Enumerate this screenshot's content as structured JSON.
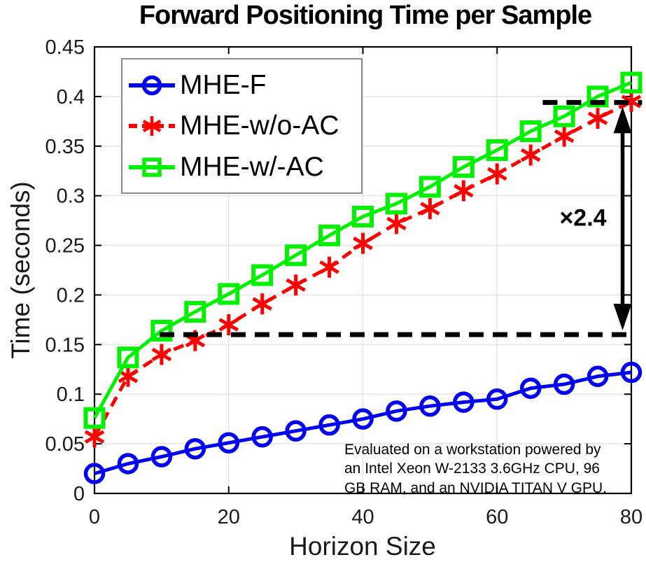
{
  "chart_data": {
    "type": "line",
    "title": "Forward Positioning Time per Sample",
    "xlabel": "Horizon Size",
    "ylabel": "Time (seconds)",
    "xlim": [
      0,
      80
    ],
    "ylim": [
      0,
      0.45
    ],
    "grid": true,
    "legend_position": "northwest",
    "xticks": {
      "values": [
        0,
        20,
        40,
        60,
        80
      ],
      "labels": [
        "0",
        "20",
        "40",
        "60",
        "80"
      ]
    },
    "yticks": {
      "values": [
        0,
        0.05,
        0.1,
        0.15,
        0.2,
        0.25,
        0.3,
        0.35,
        0.4,
        0.45
      ],
      "labels": [
        "0",
        "0.05",
        "0.1",
        "0.15",
        "0.2",
        "0.25",
        "0.3",
        "0.35",
        "0.4",
        "0.45"
      ]
    },
    "x": [
      0,
      5,
      10,
      15,
      20,
      25,
      30,
      35,
      40,
      45,
      50,
      55,
      60,
      65,
      70,
      75,
      80
    ],
    "series": [
      {
        "id": "mhe-f",
        "name": "MHE-F",
        "color": "#0000f0",
        "line": "solid",
        "marker": "circle",
        "values": [
          0.02,
          0.03,
          0.037,
          0.045,
          0.051,
          0.057,
          0.063,
          0.069,
          0.075,
          0.083,
          0.088,
          0.092,
          0.095,
          0.106,
          0.11,
          0.118,
          0.122
        ]
      },
      {
        "id": "mhe-wo-ac",
        "name": "MHE-w/o-AC",
        "color": "#ff0000",
        "line": "dashed",
        "marker": "asterisk",
        "values": [
          0.057,
          0.118,
          0.14,
          0.154,
          0.17,
          0.191,
          0.21,
          0.228,
          0.252,
          0.272,
          0.287,
          0.305,
          0.322,
          0.341,
          0.36,
          0.378,
          0.395
        ]
      },
      {
        "id": "mhe-w-ac",
        "name": "MHE-w/-AC",
        "color": "#00f000",
        "line": "solid",
        "marker": "square",
        "values": [
          0.076,
          0.137,
          0.164,
          0.183,
          0.201,
          0.22,
          0.24,
          0.26,
          0.279,
          0.292,
          0.309,
          0.329,
          0.346,
          0.365,
          0.38,
          0.4,
          0.414
        ]
      }
    ],
    "annotations": {
      "dashed_lines": [
        {
          "y": 0.16,
          "x_start": 9.7,
          "x_end": 80.6
        },
        {
          "y": 0.394,
          "x_start": 66.8,
          "x_end": 81.6
        }
      ],
      "arrow": {
        "x": 78.7,
        "y_from": 0.16,
        "y_to": 0.394,
        "heads": "both",
        "color": "#000000"
      },
      "ratio_label": "×2.4",
      "note_lines": [
        "Evaluated on a workstation powered by",
        "an Intel Xeon W-2133 3.6GHz CPU, 96",
        "GB RAM, and an NVIDIA TITAN V GPU."
      ]
    }
  }
}
